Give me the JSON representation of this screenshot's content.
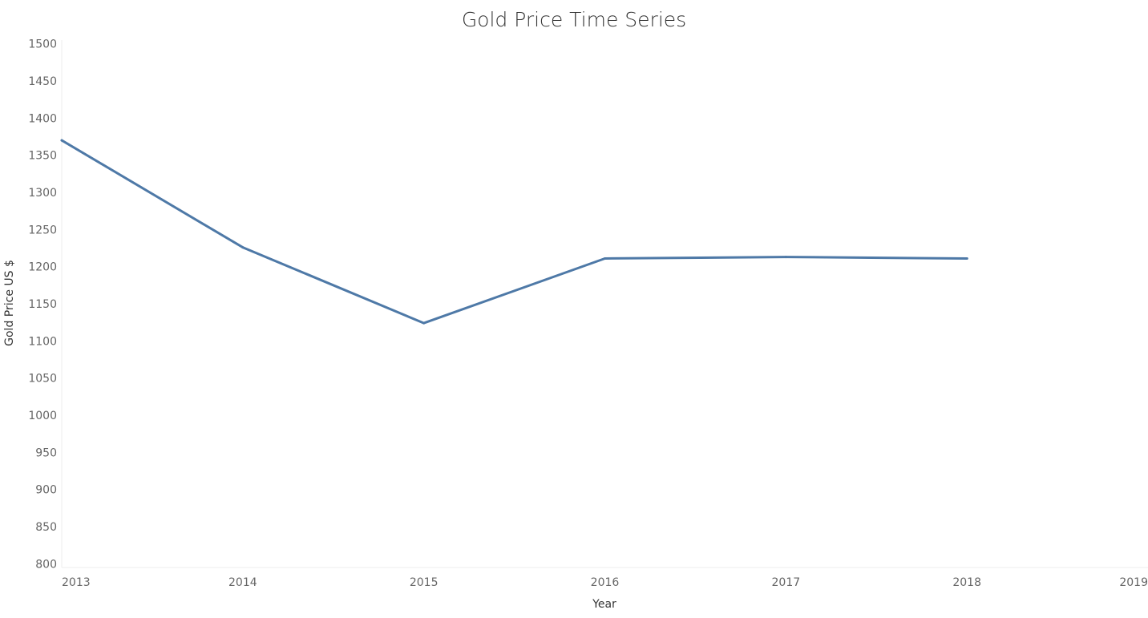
{
  "chart_data": {
    "type": "line",
    "title": "Gold Price Time Series",
    "xlabel": "Year",
    "ylabel": "Gold Price US $",
    "x_ticks": [
      "2013",
      "2014",
      "2015",
      "2016",
      "2017",
      "2018",
      "2019"
    ],
    "y_ticks": [
      800,
      850,
      900,
      950,
      1000,
      1050,
      1100,
      1150,
      1200,
      1250,
      1300,
      1350,
      1400,
      1450,
      1500
    ],
    "xlim": [
      2013,
      2019
    ],
    "ylim": [
      795,
      1505
    ],
    "grid": false,
    "series": [
      {
        "color": "#4e79a7",
        "x": [
          2013,
          2014,
          2015,
          2016,
          2017,
          2018
        ],
        "y": [
          1370,
          1226,
          1124,
          1211,
          1213,
          1211
        ]
      }
    ]
  }
}
